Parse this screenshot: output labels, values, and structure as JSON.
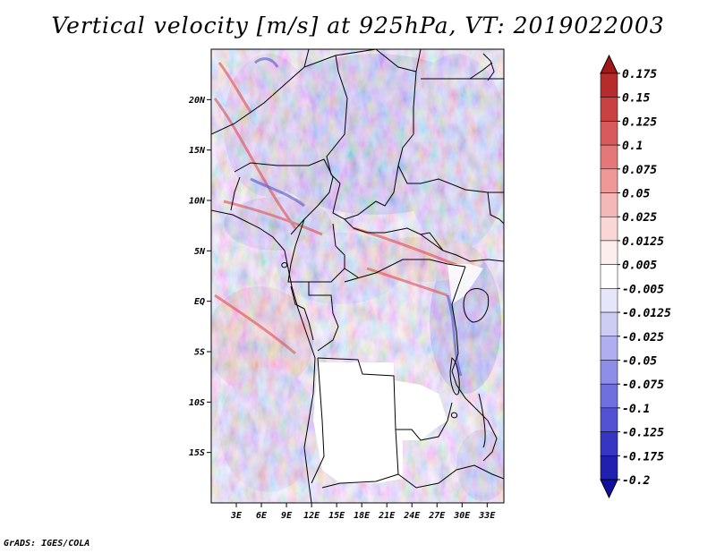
{
  "title": "Vertical velocity [m/s] at 925hPa, VT: 2019022003",
  "footer": "GrADS: IGES/COLA",
  "map": {
    "lon_range": [
      0,
      35
    ],
    "lat_range": [
      -20,
      25
    ],
    "lat_labels": [
      "20N",
      "15N",
      "10N",
      "5N",
      "EQ",
      "5S",
      "10S",
      "15S"
    ],
    "lat_values": [
      20,
      15,
      10,
      5,
      0,
      -5,
      -10,
      -15
    ],
    "lon_labels": [
      "3E",
      "6E",
      "9E",
      "12E",
      "15E",
      "18E",
      "21E",
      "24E",
      "27E",
      "30E",
      "33E"
    ],
    "lon_values": [
      3,
      6,
      9,
      12,
      15,
      18,
      21,
      24,
      27,
      30,
      33
    ]
  },
  "colorbar": {
    "labels": [
      "0.175",
      "0.15",
      "0.125",
      "0.1",
      "0.075",
      "0.05",
      "0.025",
      "0.0125",
      "0.005",
      "-0.005",
      "-0.0125",
      "-0.025",
      "-0.05",
      "-0.075",
      "-0.1",
      "-0.125",
      "-0.175",
      "-0.2"
    ],
    "colors": [
      "#a01818",
      "#b62b2b",
      "#c94242",
      "#d85a5a",
      "#e47777",
      "#ee9898",
      "#f5b8b8",
      "#fad6d6",
      "#fdeeee",
      "#ffffff",
      "#e6e6fa",
      "#ccccf5",
      "#aeaef0",
      "#8e8ee8",
      "#6f6fde",
      "#5252d2",
      "#3636c2",
      "#2020b0",
      "#1010a0"
    ]
  }
}
